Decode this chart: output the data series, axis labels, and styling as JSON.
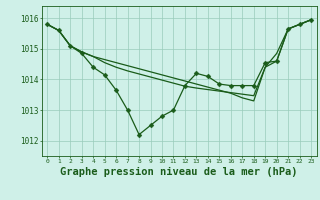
{
  "title": "Graphe pression niveau de la mer (hPa)",
  "background_color": "#cff0e8",
  "grid_color": "#99ccbb",
  "line_color": "#1a5c1a",
  "marker_color": "#1a5c1a",
  "xlim": [
    -0.5,
    23.5
  ],
  "ylim": [
    1011.5,
    1016.4
  ],
  "yticks": [
    1012,
    1013,
    1014,
    1015,
    1016
  ],
  "xticks": [
    0,
    1,
    2,
    3,
    4,
    5,
    6,
    7,
    8,
    9,
    10,
    11,
    12,
    13,
    14,
    15,
    16,
    17,
    18,
    19,
    20,
    21,
    22,
    23
  ],
  "series0": [
    1015.8,
    1015.6,
    1015.1,
    1014.85,
    1014.4,
    1014.15,
    1013.65,
    1013.0,
    1012.2,
    1012.5,
    1012.8,
    1013.0,
    1013.8,
    1014.2,
    1014.1,
    1013.85,
    1013.8,
    1013.8,
    1013.8,
    1014.55,
    1014.6,
    1015.65,
    1015.8,
    1015.95
  ],
  "series1": [
    1015.8,
    1015.6,
    1015.1,
    1014.9,
    1014.75,
    1014.65,
    1014.55,
    1014.45,
    1014.35,
    1014.25,
    1014.15,
    1014.05,
    1013.95,
    1013.85,
    1013.75,
    1013.65,
    1013.55,
    1013.4,
    1013.3,
    1014.4,
    1014.85,
    1015.65,
    1015.8,
    1015.95
  ],
  "series2": [
    1015.8,
    1015.6,
    1015.1,
    1014.9,
    1014.75,
    1014.55,
    1014.4,
    1014.28,
    1014.18,
    1014.08,
    1013.98,
    1013.88,
    1013.78,
    1013.72,
    1013.67,
    1013.62,
    1013.57,
    1013.52,
    1013.47,
    1014.4,
    1014.6,
    1015.65,
    1015.8,
    1015.95
  ],
  "marker": "D",
  "marker_size": 2.5,
  "line_width": 0.9,
  "title_fontsize": 7.5
}
